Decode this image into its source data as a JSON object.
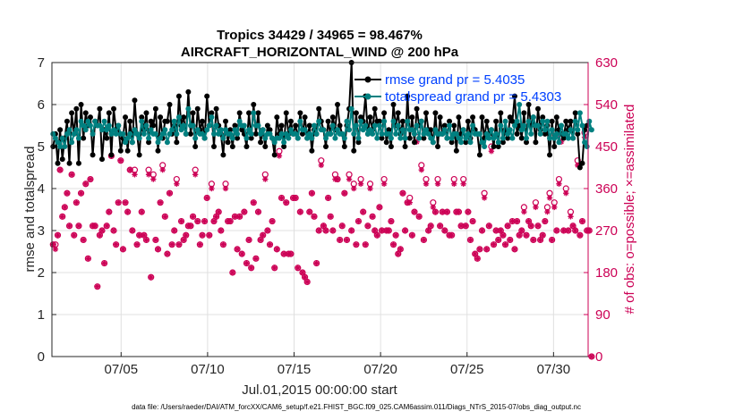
{
  "chart_data": {
    "type": "line",
    "title_line1": "Tropics 34429 / 34965 = 98.467%",
    "title_line2": "AIRCRAFT_HORIZONTAL_WIND @ 200 hPa",
    "xlabel": "Jul.01,2015 00:00:00 start",
    "ylabel_left": "rmse and totalspread",
    "ylabel_right": "# of obs: o=possible; ×=assimilated",
    "xlim": [
      1,
      32
    ],
    "ylim_left": [
      0,
      7
    ],
    "ylim_right": [
      0,
      630
    ],
    "x_ticks": [
      5,
      10,
      15,
      20,
      25,
      30
    ],
    "x_tick_labels": [
      "07/05",
      "07/10",
      "07/15",
      "07/20",
      "07/25",
      "07/30"
    ],
    "y_left_ticks": [
      "0",
      "1",
      "2",
      "3",
      "4",
      "5",
      "6",
      "7"
    ],
    "y_right_ticks": [
      "0",
      "90",
      "180",
      "270",
      "360",
      "450",
      "540",
      "630"
    ],
    "legend": {
      "rmse": "rmse grand pr = 5.4035",
      "spread": "totalspread grand pr = 5.4303"
    },
    "colors": {
      "rmse": "#000000",
      "spread": "#008080",
      "obs": "#cc0055",
      "grid": "#e0e0e0"
    },
    "series_rmse": [
      5.0,
      5.3,
      4.6,
      5.4,
      4.7,
      5.2,
      5.6,
      4.6,
      5.8,
      5.3,
      5.9,
      4.6,
      6.0,
      5.2,
      5.8,
      5.5,
      5.7,
      4.8,
      5.6,
      5.5,
      5.9,
      4.7,
      5.4,
      5.2,
      5.8,
      4.8,
      5.9,
      5.4,
      5.5,
      4.9,
      5.2,
      5.7,
      4.9,
      5.6,
      5.1,
      6.1,
      5.3,
      4.8,
      5.7,
      5.4,
      5.8,
      5.1,
      5.6,
      5.5,
      5.9,
      4.9,
      5.7,
      5.2,
      5.6,
      5.6,
      6.0,
      5.3,
      5.5,
      5.1,
      6.2,
      5.5,
      5.7,
      5.3,
      6.3,
      5.3,
      5.8,
      5.0,
      5.9,
      5.4,
      5.6,
      5.2,
      6.2,
      5.5,
      5.8,
      5.0,
      5.9,
      5.5,
      5.3,
      4.8,
      5.6,
      5.1,
      5.4,
      5.0,
      5.5,
      5.2,
      5.8,
      5.4,
      5.3,
      5.0,
      5.8,
      5.2,
      6.0,
      5.3,
      5.8,
      5.1,
      5.4,
      5.0,
      5.5,
      5.4,
      5.2,
      4.8,
      5.7,
      5.3,
      5.5,
      5.0,
      5.8,
      5.3,
      5.6,
      5.3,
      5.5,
      5.2,
      5.8,
      5.3,
      5.7,
      5.2,
      5.5,
      4.9,
      5.4,
      5.3,
      5.9,
      5.6,
      5.4,
      5.0,
      5.6,
      5.3,
      5.7,
      5.4,
      6.0,
      5.5,
      5.3,
      5.0,
      5.5,
      5.9,
      7.0,
      4.9,
      5.8,
      5.1,
      5.7,
      5.6,
      6.2,
      5.3,
      5.7,
      5.4,
      5.9,
      5.6,
      5.6,
      5.2,
      5.8,
      5.1,
      5.4,
      5.0,
      6.0,
      5.5,
      5.8,
      5.3,
      5.6,
      5.0,
      6.2,
      5.2,
      5.7,
      5.1,
      5.9,
      5.5,
      5.6,
      5.2,
      5.8,
      5.4,
      5.4,
      5.1,
      5.8,
      5.0,
      5.7,
      5.3,
      5.5,
      5.2,
      5.6,
      5.1,
      5.5,
      4.9,
      5.7,
      5.3,
      5.4,
      5.1,
      5.6,
      5.2,
      5.7,
      5.4,
      5.3,
      4.8,
      5.7,
      5.2,
      5.6,
      5.3,
      5.4,
      5.0,
      5.6,
      5.0,
      5.8,
      5.1,
      5.4,
      5.2,
      5.7,
      5.6,
      6.2,
      5.3,
      5.5,
      5.2,
      5.8,
      5.1,
      6.0,
      5.5,
      5.7,
      5.1,
      5.9,
      5.4,
      5.7,
      5.3,
      5.5,
      4.8,
      5.6,
      5.0,
      5.7,
      5.4,
      5.3,
      5.2,
      5.6,
      5.4,
      5.6,
      5.2,
      5.8,
      5.3,
      4.5,
      4.6,
      5.4,
      5.5
    ],
    "series_spread": [
      5.3,
      5.2,
      5.1,
      5.0,
      5.2,
      5.0,
      5.3,
      5.4,
      5.1,
      5.3,
      5.4,
      5.2,
      5.6,
      5.5,
      5.4,
      5.6,
      5.5,
      5.3,
      5.6,
      5.5,
      5.5,
      5.4,
      5.6,
      5.4,
      5.5,
      5.3,
      5.4,
      5.3,
      5.5,
      5.3,
      5.3,
      5.1,
      5.2,
      5.3,
      5.1,
      5.4,
      5.3,
      5.2,
      5.6,
      5.3,
      5.5,
      5.2,
      5.4,
      5.3,
      5.3,
      5.1,
      5.2,
      5.3,
      5.4,
      5.1,
      5.3,
      5.4,
      5.6,
      5.3,
      5.7,
      5.4,
      5.5,
      5.3,
      5.9,
      5.5,
      5.5,
      5.2,
      5.4,
      5.3,
      5.3,
      5.2,
      5.4,
      5.5,
      5.7,
      5.3,
      5.5,
      5.3,
      5.4,
      5.2,
      5.4,
      5.3,
      5.3,
      5.2,
      5.4,
      5.3,
      5.6,
      5.5,
      5.5,
      5.2,
      5.4,
      5.3,
      5.8,
      5.5,
      5.5,
      5.3,
      5.4,
      5.2,
      5.3,
      5.3,
      5.2,
      5.1,
      5.2,
      5.2,
      5.3,
      5.1,
      5.3,
      5.2,
      5.4,
      5.3,
      5.3,
      5.2,
      5.6,
      5.4,
      5.4,
      5.2,
      5.3,
      5.2,
      5.5,
      5.3,
      5.6,
      5.4,
      5.4,
      5.2,
      5.3,
      5.3,
      5.5,
      5.2,
      5.4,
      5.3,
      5.3,
      5.2,
      5.6,
      5.4,
      5.9,
      5.3,
      5.5,
      5.2,
      5.6,
      5.4,
      5.5,
      5.3,
      5.4,
      5.3,
      5.5,
      5.2,
      5.5,
      5.3,
      5.6,
      5.3,
      5.3,
      5.2,
      5.6,
      5.3,
      5.5,
      5.2,
      5.4,
      5.2,
      5.6,
      5.4,
      5.4,
      5.3,
      5.5,
      5.2,
      5.6,
      5.3,
      5.4,
      5.3,
      5.2,
      5.1,
      5.4,
      5.3,
      5.3,
      5.3,
      5.4,
      5.2,
      5.5,
      5.2,
      5.3,
      5.3,
      5.2,
      5.1,
      5.4,
      5.2,
      5.3,
      5.1,
      5.5,
      5.3,
      5.3,
      5.3,
      5.1,
      5.0,
      5.3,
      5.2,
      5.4,
      5.2,
      5.3,
      5.1,
      5.5,
      5.2,
      5.6,
      5.3,
      5.4,
      5.2,
      5.5,
      5.6,
      6.0,
      5.4,
      5.5,
      5.2,
      5.6,
      5.3,
      5.7,
      5.5,
      5.5,
      5.3,
      5.6,
      5.4,
      5.6,
      5.2,
      5.4,
      5.2,
      5.3,
      5.1,
      5.5,
      5.3,
      5.3,
      5.2,
      5.4,
      5.2,
      5.6,
      5.4,
      5.8,
      5.5,
      5.1,
      5.0,
      5.6,
      5.4
    ],
    "series_possible": [
      240,
      240,
      260,
      400,
      300,
      320,
      350,
      280,
      390,
      260,
      330,
      280,
      350,
      250,
      370,
      210,
      380,
      280,
      280,
      150,
      260,
      270,
      200,
      280,
      310,
      430,
      270,
      240,
      330,
      420,
      230,
      330,
      310,
      400,
      270,
      400,
      240,
      260,
      310,
      260,
      250,
      400,
      170,
      390,
      250,
      230,
      330,
      410,
      300,
      220,
      350,
      240,
      270,
      380,
      240,
      290,
      250,
      260,
      280,
      280,
      300,
      400,
      290,
      240,
      260,
      290,
      340,
      260,
      370,
      290,
      300,
      310,
      270,
      240,
      370,
      290,
      290,
      180,
      300,
      230,
      300,
      220,
      310,
      200,
      250,
      190,
      330,
      210,
      310,
      250,
      260,
      390,
      270,
      240,
      290,
      190,
      230,
      440,
      340,
      220,
      330,
      220,
      220,
      340,
      340,
      190,
      310,
      180,
      170,
      160,
      310,
      350,
      300,
      200,
      270,
      420,
      280,
      270,
      340,
      300,
      270,
      390,
      380,
      250,
      280,
      350,
      250,
      390,
      270,
      370,
      240,
      290,
      380,
      310,
      240,
      280,
      370,
      300,
      270,
      260,
      320,
      270,
      380,
      270,
      270,
      290,
      240,
      260,
      220,
      230,
      350,
      270,
      330,
      340,
      260,
      310,
      470,
      300,
      410,
      250,
      380,
      270,
      280,
      330,
      310,
      380,
      280,
      310,
      270,
      310,
      260,
      260,
      380,
      310,
      310,
      280,
      380,
      280,
      310,
      250,
      290,
      220,
      210,
      230,
      270,
      350,
      230,
      280,
      450,
      240,
      270,
      250,
      270,
      260,
      240,
      280,
      250,
      290,
      230,
      290,
      260,
      270,
      320,
      260,
      290,
      280,
      250,
      330,
      280,
      250,
      260,
      290,
      320,
      350,
      250,
      330,
      270,
      380,
      470,
      270,
      360,
      270,
      310,
      280,
      270,
      420,
      260,
      290,
      480,
      270,
      270,
      0
    ],
    "series_assimilated": [
      240,
      230,
      260,
      400,
      300,
      320,
      350,
      280,
      390,
      260,
      330,
      280,
      350,
      250,
      370,
      210,
      380,
      280,
      280,
      150,
      260,
      270,
      200,
      280,
      310,
      430,
      270,
      240,
      330,
      420,
      230,
      330,
      310,
      400,
      270,
      390,
      240,
      260,
      310,
      260,
      250,
      390,
      170,
      380,
      250,
      230,
      330,
      400,
      300,
      220,
      350,
      240,
      270,
      370,
      240,
      290,
      250,
      260,
      280,
      280,
      300,
      390,
      290,
      240,
      260,
      290,
      340,
      260,
      360,
      290,
      300,
      310,
      270,
      240,
      360,
      290,
      290,
      180,
      300,
      230,
      300,
      220,
      310,
      200,
      250,
      190,
      330,
      210,
      310,
      250,
      260,
      380,
      270,
      240,
      290,
      190,
      230,
      430,
      340,
      220,
      330,
      220,
      220,
      340,
      340,
      190,
      310,
      180,
      170,
      160,
      310,
      350,
      300,
      200,
      270,
      410,
      280,
      270,
      340,
      300,
      270,
      380,
      380,
      250,
      280,
      350,
      250,
      380,
      270,
      360,
      240,
      290,
      370,
      310,
      240,
      280,
      360,
      300,
      270,
      260,
      320,
      270,
      370,
      270,
      270,
      290,
      240,
      260,
      220,
      230,
      350,
      270,
      330,
      330,
      260,
      310,
      460,
      300,
      400,
      250,
      370,
      270,
      280,
      320,
      310,
      370,
      280,
      310,
      270,
      310,
      260,
      260,
      370,
      310,
      310,
      280,
      370,
      280,
      310,
      250,
      290,
      220,
      210,
      230,
      270,
      340,
      230,
      280,
      440,
      240,
      270,
      250,
      270,
      260,
      240,
      280,
      250,
      290,
      230,
      290,
      260,
      270,
      310,
      260,
      290,
      280,
      250,
      320,
      280,
      250,
      260,
      290,
      310,
      340,
      250,
      320,
      270,
      370,
      460,
      270,
      350,
      270,
      300,
      280,
      270,
      410,
      260,
      290,
      470,
      270,
      270,
      0
    ]
  },
  "footer": "data file: /Users/raeder/DAI/ATM_forcXX/CAM6_setup/f.e21.FHIST_BGC.f09_025.CAM6assim.011/Diags_NTrS_2015-07/obs_diag_output.nc"
}
